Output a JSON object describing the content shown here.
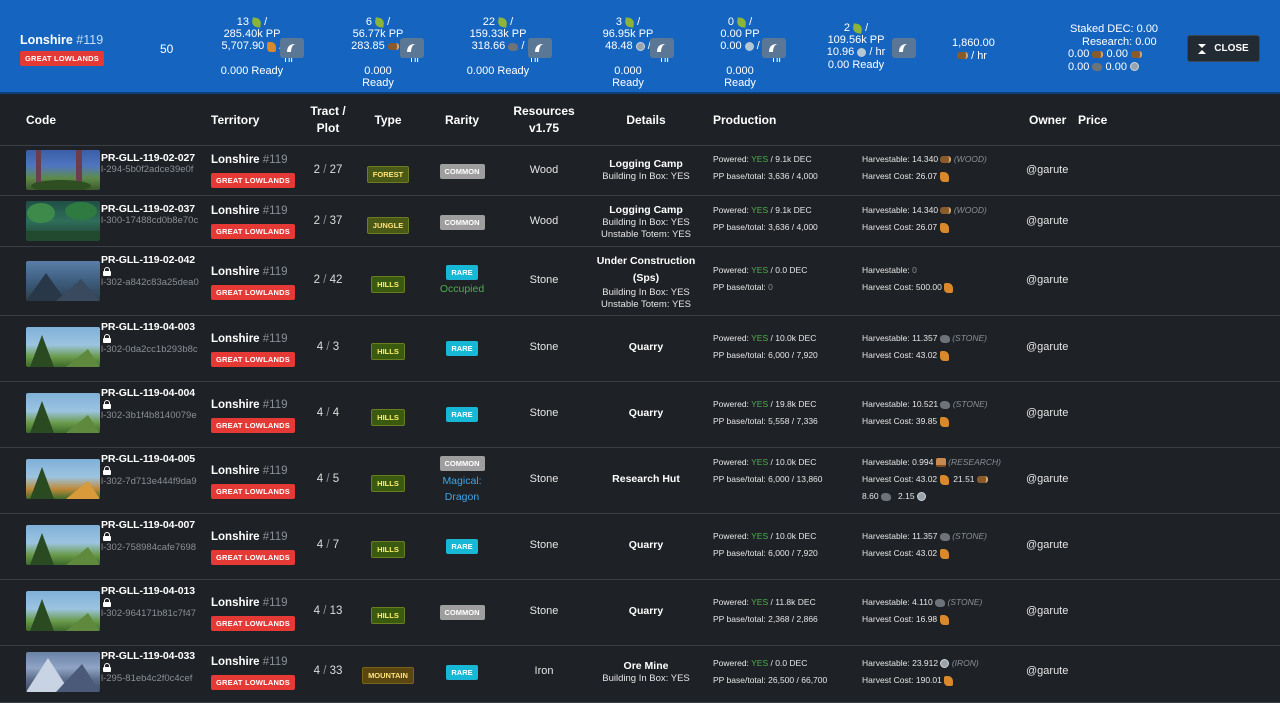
{
  "topbar": {
    "region_name": "Lonshire",
    "region_num": "#119",
    "region_badge": "GREAT LOWLANDS",
    "count": "50",
    "stats": [
      {
        "line1": "13",
        "line2": "285.40k PP",
        "line3": "5,707.90",
        "line4": "hr",
        "line5": "0.000 Ready"
      },
      {
        "line1": "6",
        "line2": "56.77k PP",
        "line3": "283.85",
        "line4": "hr",
        "line5": "0.000",
        "line6": "Ready"
      },
      {
        "line1": "22",
        "line2": "159.33k PP",
        "line3": "318.66",
        "line4": "hr",
        "line5": "0.000 Ready"
      },
      {
        "line1": "3",
        "line2": "96.95k PP",
        "line3": "48.48",
        "line4": "hr",
        "line5": "0.000",
        "line6": "Ready"
      },
      {
        "line1": "0",
        "line2": "0.00 PP",
        "line3": "0.00",
        "line4": "hr",
        "line5": "0.000",
        "line6": "Ready"
      },
      {
        "line1": "2",
        "line2": "109.56k PP",
        "line3": "10.96",
        "line4": "hr",
        "line5": "0.00 Ready"
      }
    ],
    "dec_value": "1,860.00",
    "dec_unit": "hr",
    "staked_label": "Staked DEC: 0.00",
    "research_label": "Research: 0.00",
    "mini": [
      [
        "0.00",
        "0.00"
      ],
      [
        "0.00",
        "0.00"
      ]
    ],
    "close_label": "CLOSE"
  },
  "headers": {
    "code": "Code",
    "territory": "Territory",
    "tract_plot": "Tract / Plot",
    "type": "Type",
    "rarity": "Rarity",
    "resources": "Resources v1.75",
    "details": "Details",
    "production": "Production",
    "owner": "Owner",
    "price": "Price"
  },
  "colors": {
    "topbar": "#1565c0",
    "badge_red": "#e53935",
    "rare": "#17b8d6",
    "common": "#9e9e9e",
    "yes_green": "#4caf50",
    "magical_blue": "#40a4e8"
  },
  "rows": [
    {
      "code": "PR-GLL-119-02-027",
      "locked": false,
      "sub": "l-294-5b0f2adce39e0f",
      "terr": "Lonshire",
      "terr_num": "#119",
      "terr_badge": "GREAT LOWLANDS",
      "tract": "2",
      "plot": "27",
      "type": "FOREST",
      "rarity": "COMMON",
      "occ": "",
      "mag": "",
      "resource": "Wood",
      "det_title": "Logging Camp",
      "det_lines": [
        "Building In Box: YES"
      ],
      "powered": "YES",
      "powered_dec": "/ 9.1k DEC",
      "pp_label": "PP base/total:",
      "pp": "3,636 / 4,000",
      "harv_label": "Harvestable:",
      "harv_val": "14.340",
      "harv_type": "(WOOD)",
      "cost_label": "Harvest Cost:",
      "cost_val": "26.07",
      "owner": "@garute"
    },
    {
      "code": "PR-GLL-119-02-037",
      "locked": false,
      "sub": "l-300-17488cd0b8e70c",
      "terr": "Lonshire",
      "terr_num": "#119",
      "terr_badge": "GREAT LOWLANDS",
      "tract": "2",
      "plot": "37",
      "type": "JUNGLE",
      "rarity": "COMMON",
      "occ": "",
      "mag": "",
      "resource": "Wood",
      "det_title": "Logging Camp",
      "det_lines": [
        "Building In Box: YES",
        "Unstable Totem: YES"
      ],
      "powered": "YES",
      "powered_dec": "/ 9.1k DEC",
      "pp_label": "PP base/total:",
      "pp": "3,636 / 4,000",
      "harv_label": "Harvestable:",
      "harv_val": "14.340",
      "harv_type": "(WOOD)",
      "cost_label": "Harvest Cost:",
      "cost_val": "26.07",
      "owner": "@garute"
    },
    {
      "code": "PR-GLL-119-02-042",
      "locked": true,
      "sub": "l-302-a842c83a25dea0",
      "terr": "Lonshire",
      "terr_num": "#119",
      "terr_badge": "GREAT LOWLANDS",
      "tract": "2",
      "plot": "42",
      "type": "HILLS",
      "rarity": "RARE",
      "occ": "Occupied",
      "mag": "",
      "resource": "Stone",
      "det_title": "Under Construction (Sps)",
      "det_lines": [
        "Building In Box: YES",
        "Unstable Totem: YES"
      ],
      "powered": "YES",
      "powered_dec": "/ 0.0 DEC",
      "pp_label": "PP base/total:",
      "pp": "0",
      "harv_label": "Harvestable:",
      "harv_val": "0",
      "harv_type": "",
      "cost_label": "Harvest Cost:",
      "cost_val": "500.00",
      "owner": "@garute"
    },
    {
      "code": "PR-GLL-119-04-003",
      "locked": true,
      "sub": "l-302-0da2cc1b293b8c",
      "terr": "Lonshire",
      "terr_num": "#119",
      "terr_badge": "GREAT LOWLANDS",
      "tract": "4",
      "plot": "3",
      "type": "HILLS",
      "rarity": "RARE",
      "occ": "",
      "mag": "",
      "resource": "Stone",
      "det_title": "Quarry",
      "det_lines": [],
      "powered": "YES",
      "powered_dec": "/ 10.0k DEC",
      "pp_label": "PP base/total:",
      "pp": "6,000 / 7,920",
      "harv_label": "Harvestable:",
      "harv_val": "11.357",
      "harv_type": "(STONE)",
      "cost_label": "Harvest Cost:",
      "cost_val": "43.02",
      "owner": "@garute"
    },
    {
      "code": "PR-GLL-119-04-004",
      "locked": true,
      "sub": "l-302-3b1f4b8140079e",
      "terr": "Lonshire",
      "terr_num": "#119",
      "terr_badge": "GREAT LOWLANDS",
      "tract": "4",
      "plot": "4",
      "type": "HILLS",
      "rarity": "RARE",
      "occ": "",
      "mag": "",
      "resource": "Stone",
      "det_title": "Quarry",
      "det_lines": [],
      "powered": "YES",
      "powered_dec": "/ 19.8k DEC",
      "pp_label": "PP base/total:",
      "pp": "5,558 / 7,336",
      "harv_label": "Harvestable:",
      "harv_val": "10.521",
      "harv_type": "(STONE)",
      "cost_label": "Harvest Cost:",
      "cost_val": "39.85",
      "owner": "@garute"
    },
    {
      "code": "PR-GLL-119-04-005",
      "locked": true,
      "sub": "l-302-7d713e444f9da9",
      "terr": "Lonshire",
      "terr_num": "#119",
      "terr_badge": "GREAT LOWLANDS",
      "tract": "4",
      "plot": "5",
      "type": "HILLS",
      "rarity": "COMMON",
      "occ": "",
      "mag": "Magical: Dragon",
      "resource": "Stone",
      "det_title": "Research Hut",
      "det_lines": [],
      "powered": "YES",
      "powered_dec": "/ 10.0k DEC",
      "pp_label": "PP base/total:",
      "pp": "6,000 / 13,860",
      "harv_label": "Harvestable:",
      "harv_val": "0.994",
      "harv_type": "(RESEARCH)",
      "cost_label": "Harvest Cost:",
      "cost_val": "43.02",
      "cost_extra": "21.51",
      "extra_a": "8.60",
      "extra_b": "2.15",
      "owner": "@garute"
    },
    {
      "code": "PR-GLL-119-04-007",
      "locked": true,
      "sub": "l-302-758984cafe7698",
      "terr": "Lonshire",
      "terr_num": "#119",
      "terr_badge": "GREAT LOWLANDS",
      "tract": "4",
      "plot": "7",
      "type": "HILLS",
      "rarity": "RARE",
      "occ": "",
      "mag": "",
      "resource": "Stone",
      "det_title": "Quarry",
      "det_lines": [],
      "powered": "YES",
      "powered_dec": "/ 10.0k DEC",
      "pp_label": "PP base/total:",
      "pp": "6,000 / 7,920",
      "harv_label": "Harvestable:",
      "harv_val": "11.357",
      "harv_type": "(STONE)",
      "cost_label": "Harvest Cost:",
      "cost_val": "43.02",
      "owner": "@garute"
    },
    {
      "code": "PR-GLL-119-04-013",
      "locked": true,
      "sub": "l-302-964171b81c7f47",
      "terr": "Lonshire",
      "terr_num": "#119",
      "terr_badge": "GREAT LOWLANDS",
      "tract": "4",
      "plot": "13",
      "type": "HILLS",
      "rarity": "COMMON",
      "occ": "",
      "mag": "",
      "resource": "Stone",
      "det_title": "Quarry",
      "det_lines": [],
      "powered": "YES",
      "powered_dec": "/ 11.8k DEC",
      "pp_label": "PP base/total:",
      "pp": "2,368 / 2,866",
      "harv_label": "Harvestable:",
      "harv_val": "4.110",
      "harv_type": "(STONE)",
      "cost_label": "Harvest Cost:",
      "cost_val": "16.98",
      "owner": "@garute"
    },
    {
      "code": "PR-GLL-119-04-033",
      "locked": true,
      "sub": "l-295-81eb4c2f0c4cef",
      "terr": "Lonshire",
      "terr_num": "#119",
      "terr_badge": "GREAT LOWLANDS",
      "tract": "4",
      "plot": "33",
      "type": "MOUNTAIN",
      "rarity": "RARE",
      "occ": "",
      "mag": "",
      "resource": "Iron",
      "det_title": "Ore Mine",
      "det_lines": [
        "Building In Box: YES"
      ],
      "powered": "YES",
      "powered_dec": "/ 0.0 DEC",
      "pp_label": "PP base/total:",
      "pp": "26,500 / 66,700",
      "harv_label": "Harvestable:",
      "harv_val": "23.912",
      "harv_type": "(IRON)",
      "cost_label": "Harvest Cost:",
      "cost_val": "190.01",
      "owner": "@garute"
    }
  ]
}
